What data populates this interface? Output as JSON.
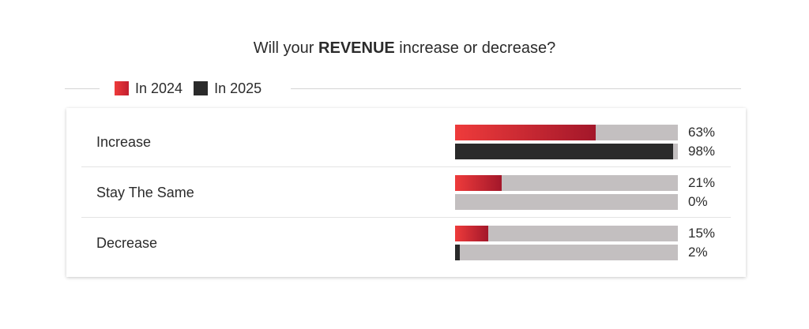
{
  "title": {
    "prefix": "Will your",
    "emphasis": "REVENUE",
    "suffix": "increase or decrease?"
  },
  "legend": [
    {
      "label": "In 2024",
      "color": "#e8303a"
    },
    {
      "label": "In 2025",
      "color": "#2a2a2a"
    }
  ],
  "chart_data": {
    "type": "bar",
    "orientation": "horizontal",
    "title": "Will your REVENUE increase or decrease?",
    "categories": [
      "Increase",
      "Stay The Same",
      "Decrease"
    ],
    "series": [
      {
        "name": "In 2024",
        "values": [
          63,
          21,
          15
        ],
        "labels": [
          "63%",
          "21%",
          "15%"
        ]
      },
      {
        "name": "In 2025",
        "values": [
          98,
          0,
          2
        ],
        "labels": [
          "98%",
          "0%",
          "2%"
        ]
      }
    ],
    "xlim": [
      0,
      100
    ],
    "unit": "%",
    "legend_position": "top-left"
  }
}
